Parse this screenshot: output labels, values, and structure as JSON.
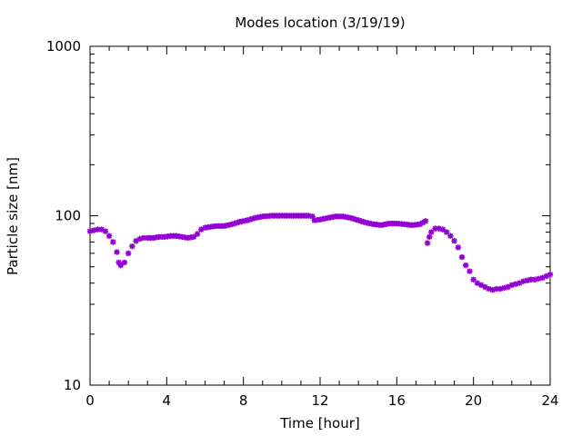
{
  "chart_data": {
    "type": "scatter",
    "title": "Modes location (3/19/19)",
    "xlabel": "Time [hour]",
    "ylabel": "Particle size [nm]",
    "xlim": [
      0,
      24
    ],
    "ylim": [
      10,
      1000
    ],
    "yscale": "log",
    "xticks": [
      0,
      4,
      8,
      12,
      16,
      20,
      24
    ],
    "yticks": [
      10,
      100,
      1000
    ],
    "grid": false,
    "marker_color": "#9400d3",
    "series": [
      {
        "points": [
          [
            0.0,
            81
          ],
          [
            0.2,
            82
          ],
          [
            0.4,
            83
          ],
          [
            0.6,
            83
          ],
          [
            0.8,
            81
          ],
          [
            1.0,
            76
          ],
          [
            1.2,
            70
          ],
          [
            1.4,
            61
          ],
          [
            1.5,
            53
          ],
          [
            1.6,
            51
          ],
          [
            1.8,
            53
          ],
          [
            2.0,
            60
          ],
          [
            2.2,
            66
          ],
          [
            2.4,
            71
          ],
          [
            2.6,
            73
          ],
          [
            2.8,
            74
          ],
          [
            3.0,
            74
          ],
          [
            3.3,
            74
          ],
          [
            3.6,
            75
          ],
          [
            3.9,
            75
          ],
          [
            4.2,
            76
          ],
          [
            4.5,
            76
          ],
          [
            4.8,
            75
          ],
          [
            5.1,
            74
          ],
          [
            5.4,
            75
          ],
          [
            5.6,
            78
          ],
          [
            5.8,
            83
          ],
          [
            6.0,
            85
          ],
          [
            6.3,
            86
          ],
          [
            6.6,
            87
          ],
          [
            7.0,
            87
          ],
          [
            7.4,
            89
          ],
          [
            7.8,
            92
          ],
          [
            8.2,
            94
          ],
          [
            8.6,
            97
          ],
          [
            9.0,
            99
          ],
          [
            9.5,
            100
          ],
          [
            10.0,
            100
          ],
          [
            10.5,
            100
          ],
          [
            11.0,
            100
          ],
          [
            11.4,
            100
          ],
          [
            11.6,
            99
          ],
          [
            11.7,
            94
          ],
          [
            12.0,
            95
          ],
          [
            12.4,
            97
          ],
          [
            12.8,
            99
          ],
          [
            13.2,
            99
          ],
          [
            13.6,
            97
          ],
          [
            14.0,
            94
          ],
          [
            14.4,
            91
          ],
          [
            14.8,
            89
          ],
          [
            15.2,
            88
          ],
          [
            15.6,
            90
          ],
          [
            16.0,
            90
          ],
          [
            16.4,
            89
          ],
          [
            16.8,
            88
          ],
          [
            17.2,
            89
          ],
          [
            17.5,
            93
          ],
          [
            17.6,
            69
          ],
          [
            17.7,
            75
          ],
          [
            17.8,
            80
          ],
          [
            18.0,
            84
          ],
          [
            18.2,
            84
          ],
          [
            18.4,
            83
          ],
          [
            18.6,
            80
          ],
          [
            18.8,
            76
          ],
          [
            19.0,
            71
          ],
          [
            19.2,
            65
          ],
          [
            19.4,
            57
          ],
          [
            19.6,
            51
          ],
          [
            19.8,
            47
          ],
          [
            20.0,
            42
          ],
          [
            20.2,
            40
          ],
          [
            20.4,
            39
          ],
          [
            20.6,
            38
          ],
          [
            20.8,
            37
          ],
          [
            21.0,
            36.5
          ],
          [
            21.2,
            37
          ],
          [
            21.4,
            37
          ],
          [
            21.6,
            37.5
          ],
          [
            21.8,
            38
          ],
          [
            22.0,
            39
          ],
          [
            22.2,
            39.5
          ],
          [
            22.4,
            40
          ],
          [
            22.6,
            41
          ],
          [
            22.8,
            41.5
          ],
          [
            23.0,
            42
          ],
          [
            23.2,
            42
          ],
          [
            23.4,
            42.5
          ],
          [
            23.6,
            43
          ],
          [
            23.8,
            44
          ],
          [
            24.0,
            45
          ]
        ]
      }
    ]
  }
}
